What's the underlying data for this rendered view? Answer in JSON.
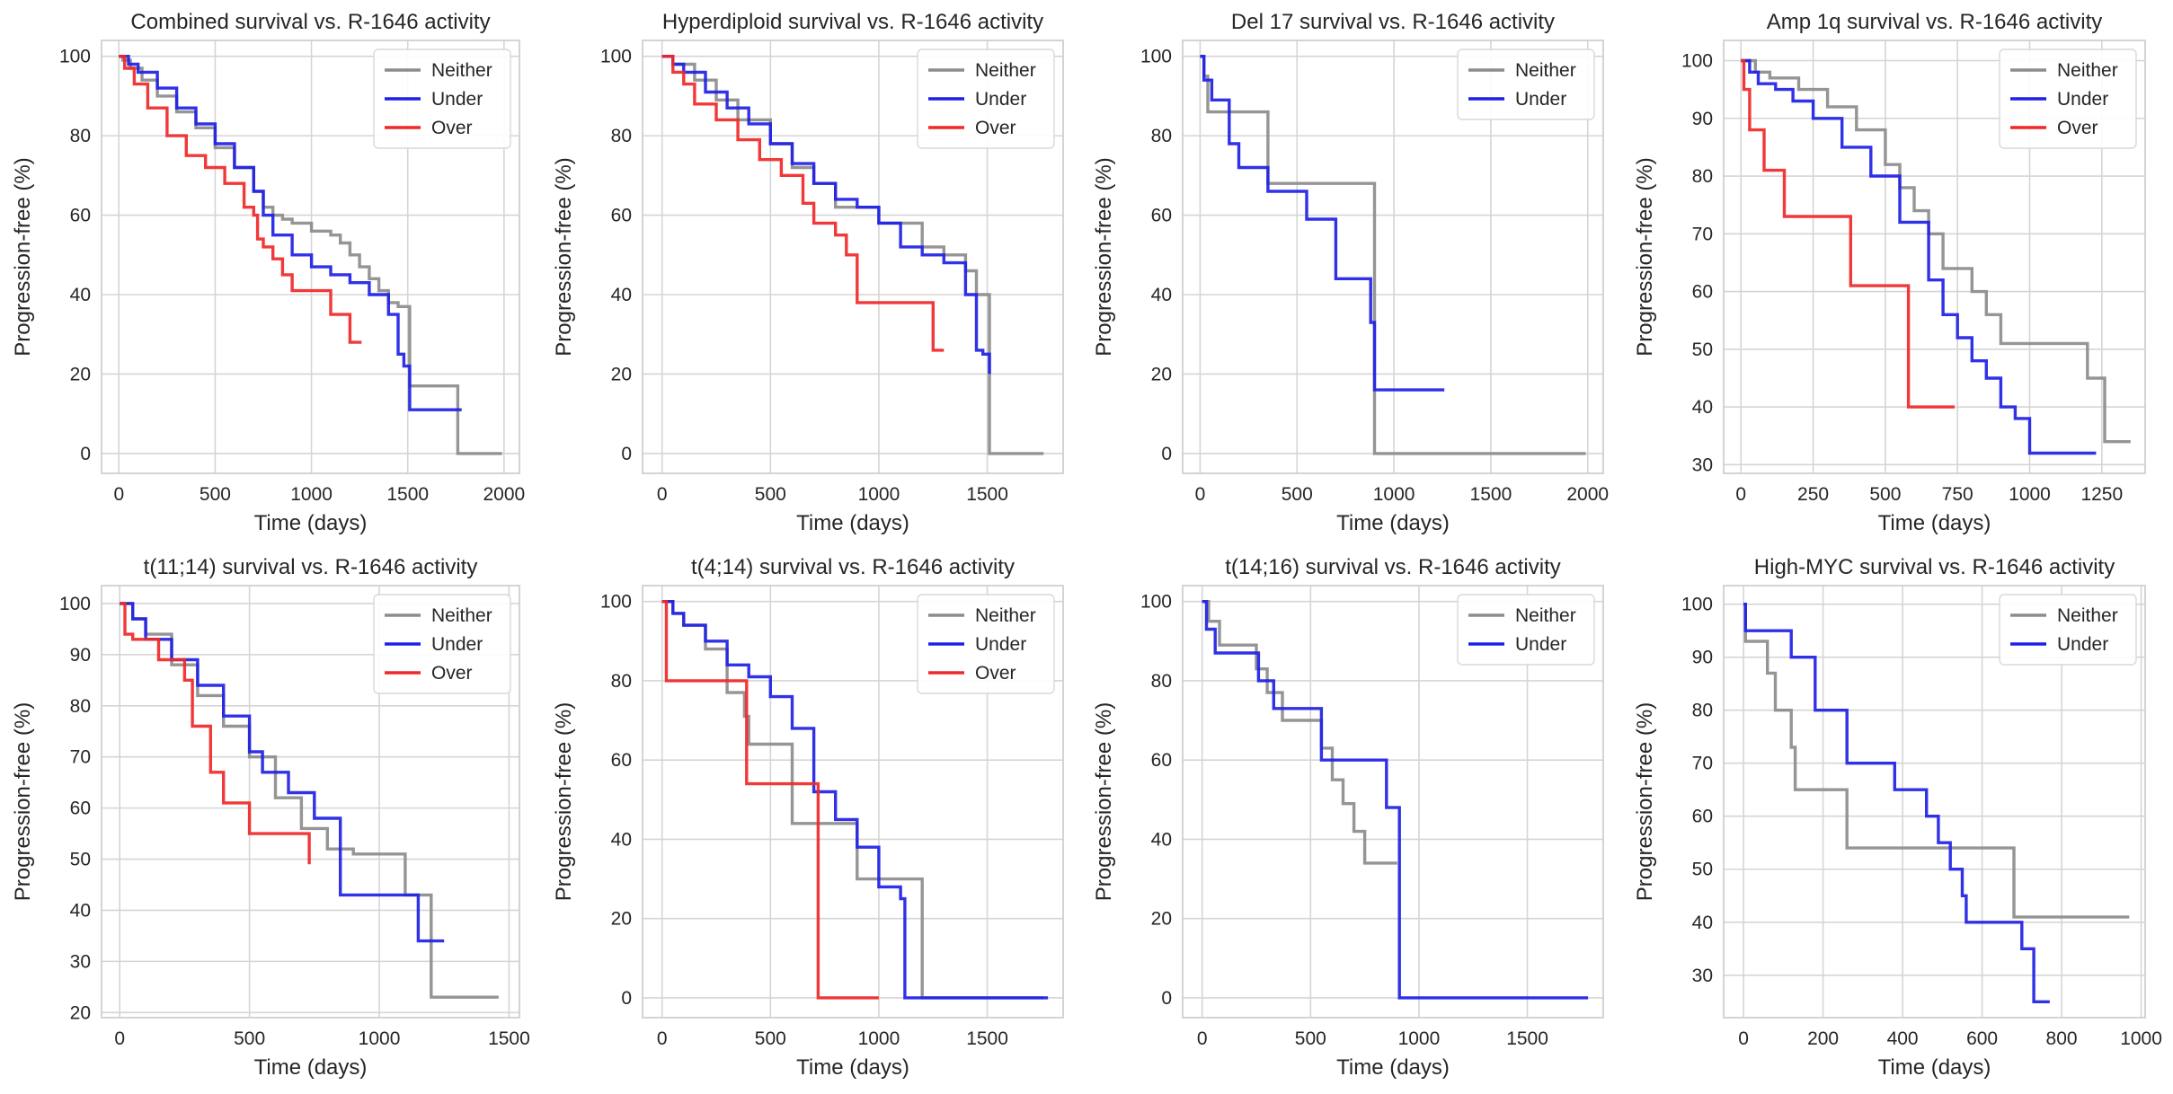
{
  "chart_data": [
    {
      "type": "line",
      "title": "Combined survival vs. R-1646 activity",
      "xlabel": "Time (days)",
      "ylabel": "Progression-free (%)",
      "xlim": [
        -90,
        2080
      ],
      "ylim": [
        -5,
        104
      ],
      "xticks": [
        0,
        500,
        1000,
        1500,
        2000
      ],
      "yticks": [
        0,
        20,
        40,
        60,
        80,
        100
      ],
      "grid": true,
      "legend_position": "top-right",
      "series": [
        {
          "name": "Neither",
          "color": "#8c8c8c",
          "x": [
            0,
            20,
            60,
            120,
            200,
            300,
            400,
            500,
            600,
            700,
            750,
            800,
            850,
            900,
            1000,
            1100,
            1150,
            1200,
            1250,
            1300,
            1350,
            1400,
            1450,
            1510,
            1760,
            1990
          ],
          "y": [
            100,
            99,
            97,
            94,
            90,
            86,
            82,
            77,
            72,
            66,
            62,
            60,
            59,
            58,
            56,
            55,
            53,
            50,
            47,
            44,
            41,
            38,
            37,
            17,
            0,
            0
          ]
        },
        {
          "name": "Under",
          "color": "#1f1fe6",
          "x": [
            0,
            50,
            100,
            200,
            300,
            400,
            500,
            600,
            700,
            750,
            800,
            900,
            1000,
            1100,
            1200,
            1300,
            1400,
            1450,
            1480,
            1510,
            1780
          ],
          "y": [
            100,
            98,
            96,
            92,
            87,
            83,
            78,
            72,
            66,
            60,
            55,
            50,
            47,
            45,
            43,
            40,
            35,
            25,
            22,
            11,
            11
          ]
        },
        {
          "name": "Over",
          "color": "#f02828",
          "x": [
            0,
            30,
            80,
            150,
            250,
            350,
            450,
            550,
            650,
            700,
            720,
            750,
            800,
            850,
            900,
            1000,
            1100,
            1200,
            1260
          ],
          "y": [
            100,
            97,
            93,
            87,
            80,
            75,
            72,
            68,
            62,
            60,
            54,
            52,
            49,
            45,
            41,
            41,
            35,
            28,
            28
          ]
        }
      ]
    },
    {
      "type": "line",
      "title": "Hyperdiploid survival vs. R-1646 activity",
      "xlabel": "Time (days)",
      "ylabel": "Progression-free (%)",
      "xlim": [
        -90,
        1850
      ],
      "ylim": [
        -5,
        104
      ],
      "xticks": [
        0,
        500,
        1000,
        1500
      ],
      "yticks": [
        0,
        20,
        40,
        60,
        80,
        100
      ],
      "grid": true,
      "legend_position": "top-right",
      "series": [
        {
          "name": "Neither",
          "color": "#8c8c8c",
          "x": [
            0,
            50,
            150,
            250,
            350,
            500,
            600,
            700,
            800,
            900,
            1000,
            1100,
            1200,
            1300,
            1400,
            1450,
            1510,
            1760
          ],
          "y": [
            100,
            98,
            94,
            89,
            84,
            78,
            72,
            68,
            62,
            62,
            58,
            58,
            52,
            50,
            46,
            40,
            0,
            0
          ]
        },
        {
          "name": "Under",
          "color": "#1f1fe6",
          "x": [
            0,
            50,
            100,
            200,
            300,
            400,
            500,
            600,
            700,
            800,
            900,
            1000,
            1100,
            1200,
            1300,
            1400,
            1450,
            1480,
            1510
          ],
          "y": [
            100,
            98,
            96,
            91,
            87,
            83,
            78,
            73,
            68,
            64,
            62,
            58,
            52,
            50,
            48,
            40,
            26,
            25,
            20
          ]
        },
        {
          "name": "Over",
          "color": "#f02828",
          "x": [
            0,
            50,
            100,
            150,
            250,
            350,
            450,
            550,
            650,
            700,
            800,
            850,
            900,
            1000,
            1100,
            1250,
            1300
          ],
          "y": [
            100,
            96,
            93,
            88,
            84,
            79,
            74,
            70,
            63,
            58,
            55,
            50,
            38,
            38,
            38,
            26,
            26
          ]
        }
      ]
    },
    {
      "type": "line",
      "title": "Del 17 survival vs. R-1646 activity",
      "xlabel": "Time (days)",
      "ylabel": "Progression-free (%)",
      "xlim": [
        -90,
        2080
      ],
      "ylim": [
        -5,
        104
      ],
      "xticks": [
        0,
        500,
        1000,
        1500,
        2000
      ],
      "yticks": [
        0,
        20,
        40,
        60,
        80,
        100
      ],
      "grid": true,
      "legend_position": "top-right",
      "series": [
        {
          "name": "Neither",
          "color": "#8c8c8c",
          "x": [
            0,
            20,
            40,
            350,
            880,
            900,
            1990
          ],
          "y": [
            100,
            95,
            86,
            68,
            68,
            0,
            0
          ]
        },
        {
          "name": "Under",
          "color": "#1f1fe6",
          "x": [
            0,
            20,
            60,
            150,
            200,
            350,
            550,
            700,
            850,
            880,
            900,
            1260
          ],
          "y": [
            100,
            94,
            89,
            78,
            72,
            66,
            59,
            44,
            44,
            33,
            16,
            16
          ]
        }
      ]
    },
    {
      "type": "line",
      "title": "Amp 1q survival vs. R-1646 activity",
      "xlabel": "Time (days)",
      "ylabel": "Progression-free (%)",
      "xlim": [
        -60,
        1400
      ],
      "ylim": [
        28.5,
        103.5
      ],
      "xticks": [
        0,
        250,
        500,
        750,
        1000,
        1250
      ],
      "yticks": [
        30,
        40,
        50,
        60,
        70,
        80,
        90,
        100
      ],
      "grid": true,
      "legend_position": "top-right",
      "series": [
        {
          "name": "Neither",
          "color": "#8c8c8c",
          "x": [
            0,
            50,
            100,
            200,
            300,
            400,
            500,
            550,
            600,
            650,
            700,
            800,
            850,
            900,
            1000,
            1200,
            1260,
            1350
          ],
          "y": [
            100,
            98,
            97,
            95,
            92,
            88,
            82,
            78,
            74,
            70,
            64,
            60,
            56,
            51,
            51,
            45,
            34,
            34
          ]
        },
        {
          "name": "Under",
          "color": "#1f1fe6",
          "x": [
            0,
            30,
            60,
            120,
            180,
            250,
            350,
            450,
            550,
            650,
            700,
            750,
            800,
            850,
            900,
            950,
            1000,
            1100,
            1230
          ],
          "y": [
            100,
            98,
            96,
            95,
            93,
            90,
            85,
            80,
            72,
            62,
            56,
            52,
            48,
            45,
            40,
            38,
            32,
            32,
            32
          ]
        },
        {
          "name": "Over",
          "color": "#f02828",
          "x": [
            0,
            10,
            30,
            80,
            150,
            380,
            580,
            740
          ],
          "y": [
            100,
            95,
            88,
            81,
            73,
            61,
            40,
            40
          ]
        }
      ]
    },
    {
      "type": "line",
      "title": "t(11;14) survival vs. R-1646 activity",
      "xlabel": "Time (days)",
      "ylabel": "Progression-free (%)",
      "xlim": [
        -70,
        1540
      ],
      "ylim": [
        19,
        103.5
      ],
      "xticks": [
        0,
        500,
        1000,
        1500
      ],
      "yticks": [
        20,
        30,
        40,
        50,
        60,
        70,
        80,
        90,
        100
      ],
      "grid": true,
      "legend_position": "top-right",
      "series": [
        {
          "name": "Neither",
          "color": "#8c8c8c",
          "x": [
            0,
            50,
            100,
            200,
            300,
            400,
            500,
            600,
            700,
            800,
            900,
            1000,
            1100,
            1200,
            1460
          ],
          "y": [
            100,
            97,
            94,
            88,
            82,
            76,
            70,
            62,
            56,
            52,
            51,
            51,
            43,
            23,
            23
          ]
        },
        {
          "name": "Under",
          "color": "#1f1fe6",
          "x": [
            0,
            50,
            100,
            200,
            300,
            400,
            500,
            550,
            650,
            750,
            850,
            900,
            1000,
            1100,
            1150,
            1250
          ],
          "y": [
            100,
            97,
            93,
            89,
            84,
            78,
            71,
            67,
            63,
            58,
            43,
            43,
            43,
            43,
            34,
            34
          ]
        },
        {
          "name": "Over",
          "color": "#f02828",
          "x": [
            0,
            20,
            50,
            150,
            250,
            280,
            350,
            400,
            500,
            550,
            650,
            730
          ],
          "y": [
            100,
            94,
            93,
            89,
            85,
            76,
            67,
            61,
            55,
            55,
            55,
            49
          ]
        }
      ]
    },
    {
      "type": "line",
      "title": "t(4;14) survival vs. R-1646 activity",
      "xlabel": "Time (days)",
      "ylabel": "Progression-free (%)",
      "xlim": [
        -90,
        1850
      ],
      "ylim": [
        -5,
        104
      ],
      "xticks": [
        0,
        500,
        1000,
        1500
      ],
      "yticks": [
        0,
        20,
        40,
        60,
        80,
        100
      ],
      "grid": true,
      "legend_position": "top-right",
      "series": [
        {
          "name": "Neither",
          "color": "#8c8c8c",
          "x": [
            0,
            50,
            100,
            200,
            300,
            380,
            400,
            600,
            800,
            900,
            1000,
            1180,
            1200,
            1760
          ],
          "y": [
            100,
            97,
            94,
            88,
            77,
            71,
            64,
            44,
            44,
            30,
            30,
            30,
            0,
            0
          ]
        },
        {
          "name": "Under",
          "color": "#1f1fe6",
          "x": [
            0,
            50,
            100,
            200,
            300,
            400,
            500,
            600,
            700,
            800,
            900,
            1000,
            1100,
            1120,
            1780
          ],
          "y": [
            100,
            97,
            94,
            90,
            84,
            81,
            76,
            68,
            52,
            45,
            38,
            28,
            25,
            0,
            0
          ]
        },
        {
          "name": "Over",
          "color": "#f02828",
          "x": [
            0,
            20,
            360,
            390,
            720,
            1000
          ],
          "y": [
            100,
            80,
            80,
            54,
            0,
            0
          ]
        }
      ]
    },
    {
      "type": "line",
      "title": "t(14;16) survival vs. R-1646 activity",
      "xlabel": "Time (days)",
      "ylabel": "Progression-free (%)",
      "xlim": [
        -90,
        1850
      ],
      "ylim": [
        -5,
        104
      ],
      "xticks": [
        0,
        500,
        1000,
        1500
      ],
      "yticks": [
        0,
        20,
        40,
        60,
        80,
        100
      ],
      "grid": true,
      "legend_position": "top-right",
      "series": [
        {
          "name": "Neither",
          "color": "#8c8c8c",
          "x": [
            0,
            30,
            80,
            250,
            300,
            370,
            550,
            600,
            650,
            700,
            750,
            850,
            900
          ],
          "y": [
            100,
            95,
            89,
            83,
            77,
            70,
            63,
            55,
            49,
            42,
            34,
            34,
            34
          ]
        },
        {
          "name": "Under",
          "color": "#1f1fe6",
          "x": [
            0,
            20,
            60,
            180,
            260,
            330,
            550,
            560,
            850,
            880,
            910,
            1780
          ],
          "y": [
            100,
            93,
            87,
            87,
            80,
            73,
            60,
            60,
            48,
            48,
            0,
            0
          ]
        }
      ]
    },
    {
      "type": "line",
      "title": "High-MYC survival vs. R-1646 activity",
      "xlabel": "Time (days)",
      "ylabel": "Progression-free (%)",
      "xlim": [
        -50,
        1010
      ],
      "ylim": [
        22,
        103.5
      ],
      "xticks": [
        0,
        200,
        400,
        600,
        800,
        1000
      ],
      "yticks": [
        30,
        40,
        50,
        60,
        70,
        80,
        90,
        100
      ],
      "grid": true,
      "legend_position": "top-right",
      "series": [
        {
          "name": "Neither",
          "color": "#8c8c8c",
          "x": [
            0,
            5,
            60,
            80,
            120,
            130,
            260,
            680,
            970
          ],
          "y": [
            100,
            93,
            87,
            80,
            73,
            65,
            54,
            41,
            41
          ]
        },
        {
          "name": "Under",
          "color": "#1f1fe6",
          "x": [
            0,
            5,
            120,
            180,
            260,
            380,
            460,
            490,
            520,
            550,
            560,
            620,
            700,
            730,
            770
          ],
          "y": [
            100,
            95,
            90,
            80,
            70,
            65,
            60,
            55,
            50,
            45,
            40,
            40,
            35,
            25,
            25
          ]
        }
      ]
    }
  ]
}
